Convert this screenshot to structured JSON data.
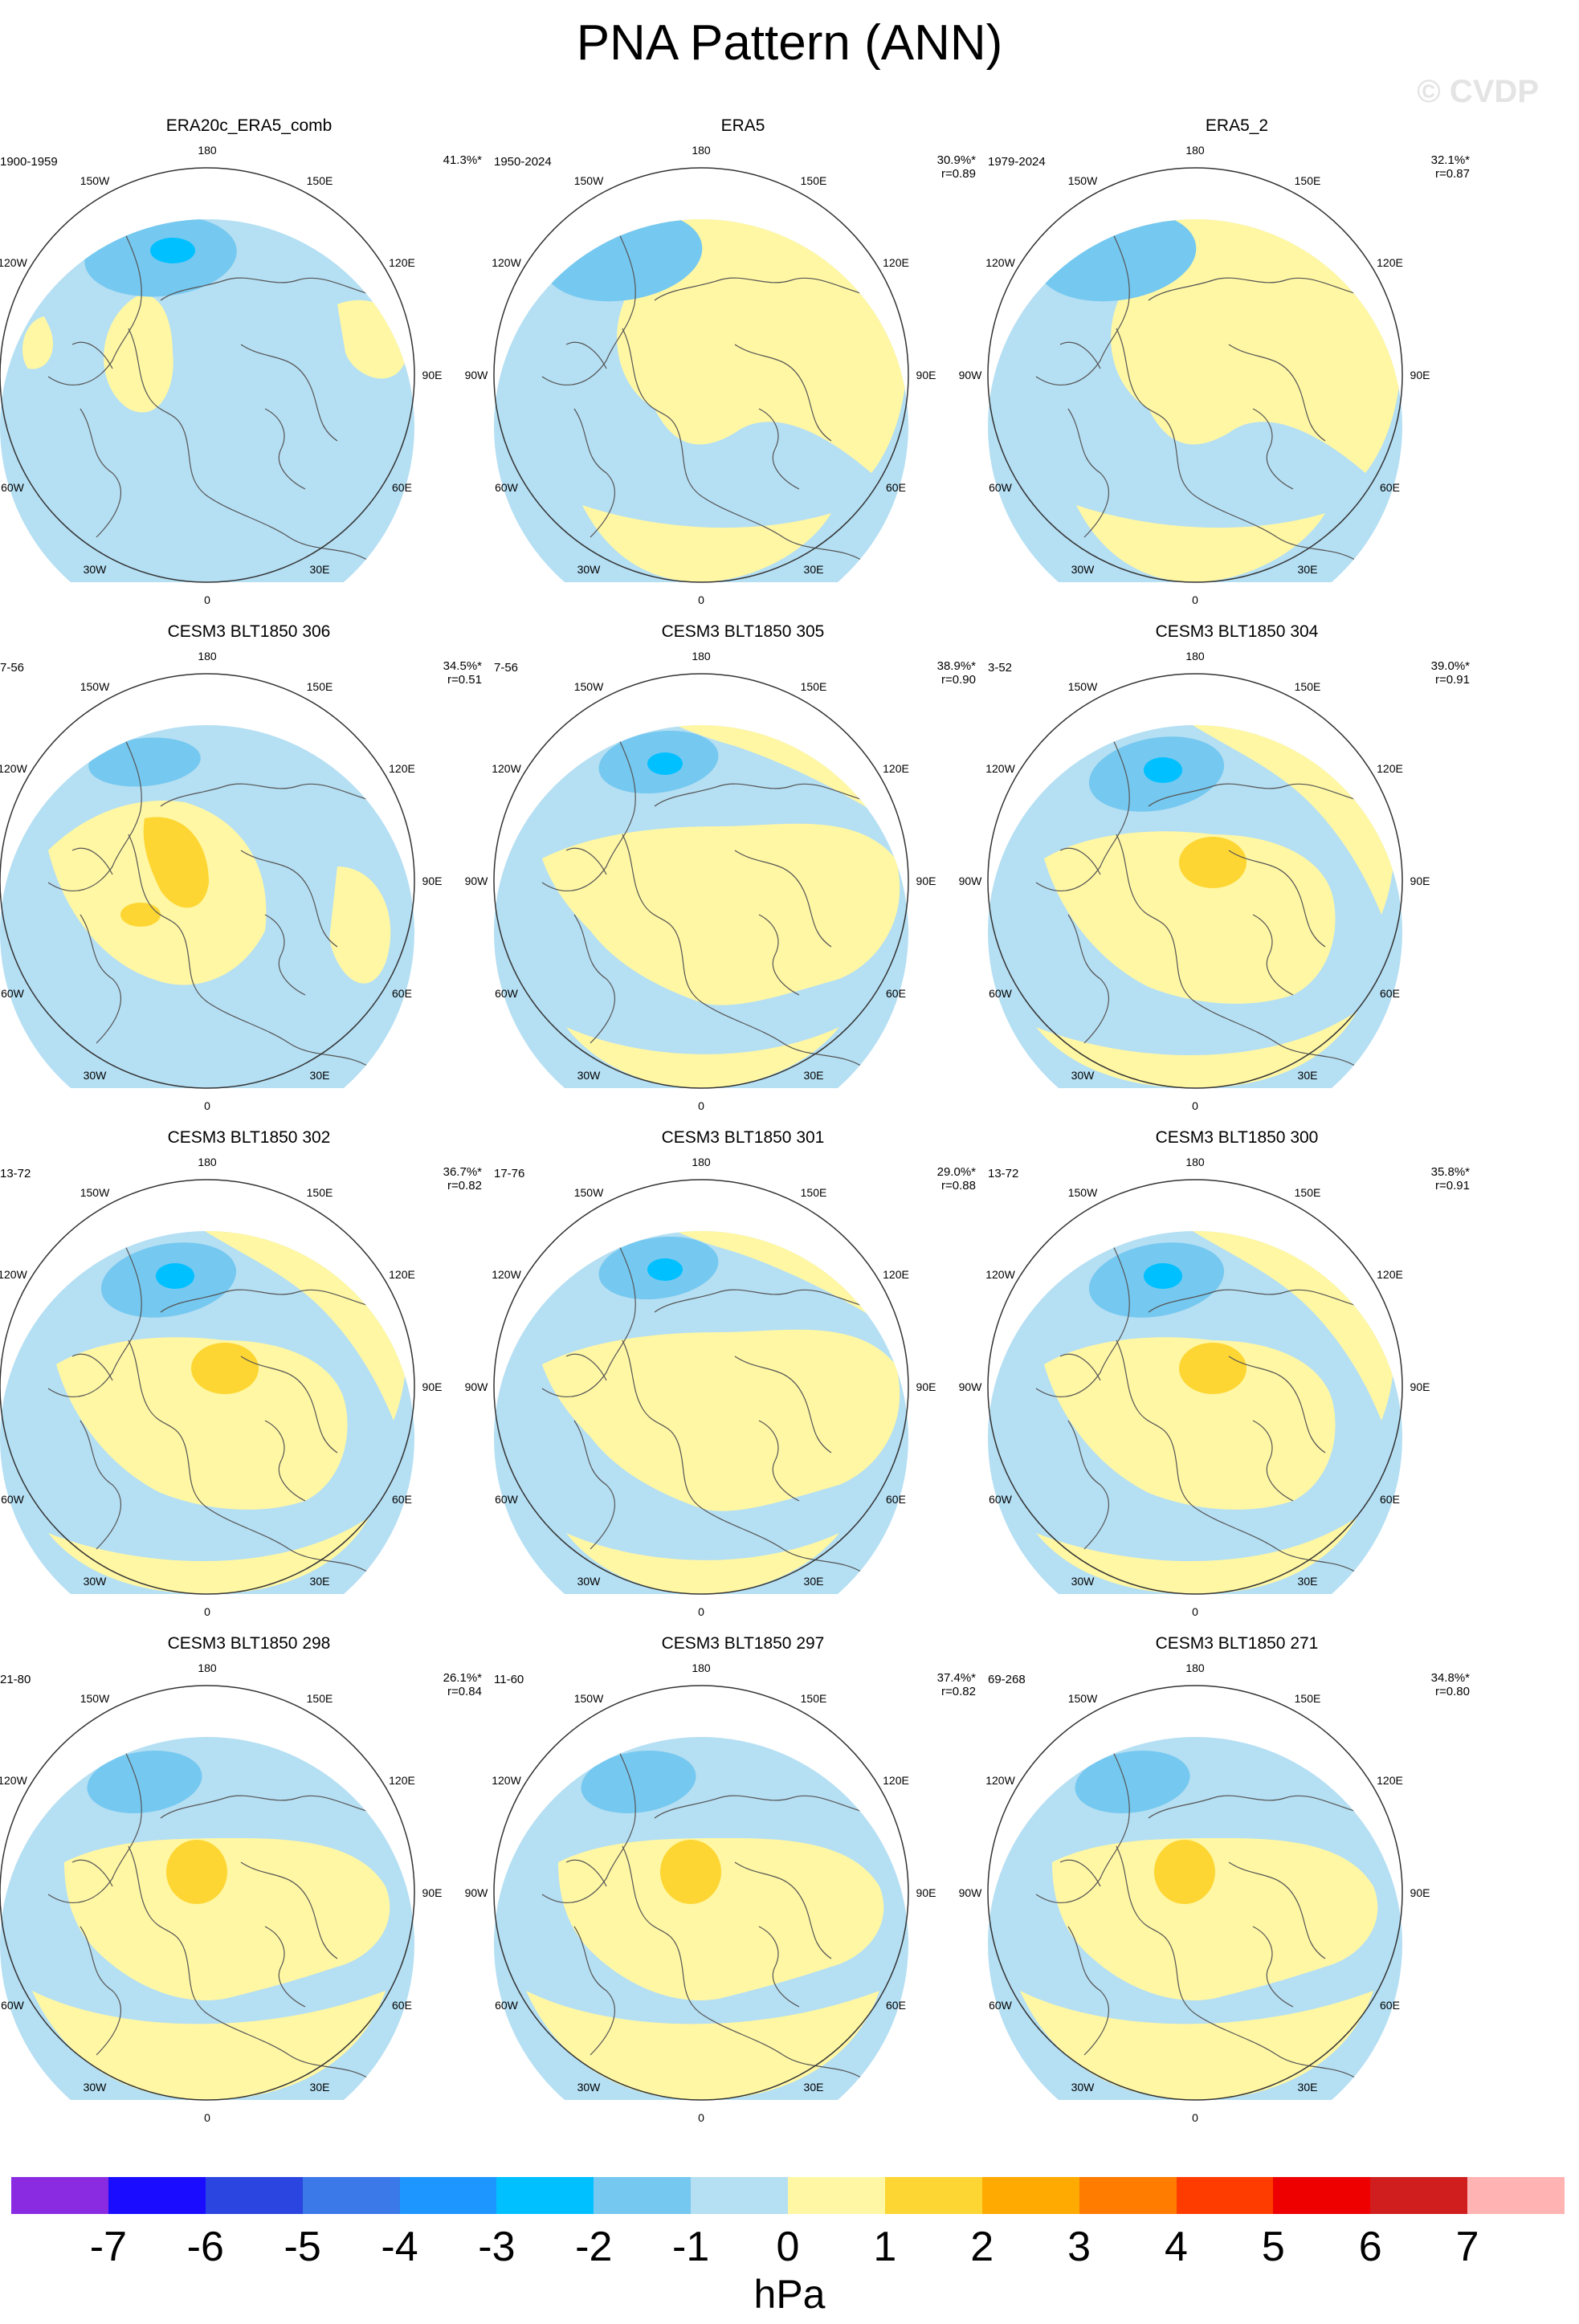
{
  "title": "PNA Pattern (ANN)",
  "watermark": "© CVDP",
  "lon_labels": {
    "l180": "180",
    "l150w": "150W",
    "l150e": "150E",
    "l120w": "120W",
    "l120e": "120E",
    "l90w": "90W",
    "l90e": "90E",
    "l60w": "60W",
    "l60e": "60E",
    "l30w": "30W",
    "l30e": "30E",
    "l0": "0"
  },
  "panels": [
    {
      "title": "ERA20c_ERA5_comb",
      "period": "1900-1959",
      "pct": "41.3%*",
      "r": "",
      "style": 0
    },
    {
      "title": "ERA5",
      "period": "1950-2024",
      "pct": "30.9%*",
      "r": "r=0.89",
      "style": 1
    },
    {
      "title": "ERA5_2",
      "period": "1979-2024",
      "pct": "32.1%*",
      "r": "r=0.87",
      "style": 1
    },
    {
      "title": "CESM3 BLT1850 306",
      "period": "7-56",
      "pct": "34.5%*",
      "r": "r=0.51",
      "style": 2
    },
    {
      "title": "CESM3 BLT1850 305",
      "period": "7-56",
      "pct": "38.9%*",
      "r": "r=0.90",
      "style": 3
    },
    {
      "title": "CESM3 BLT1850 304",
      "period": "3-52",
      "pct": "39.0%*",
      "r": "r=0.91",
      "style": 4
    },
    {
      "title": "CESM3 BLT1850 302",
      "period": "13-72",
      "pct": "36.7%*",
      "r": "r=0.82",
      "style": 4
    },
    {
      "title": "CESM3 BLT1850 301",
      "period": "17-76",
      "pct": "29.0%*",
      "r": "r=0.88",
      "style": 3
    },
    {
      "title": "CESM3 BLT1850 300",
      "period": "13-72",
      "pct": "35.8%*",
      "r": "r=0.91",
      "style": 4
    },
    {
      "title": "CESM3 BLT1850 298",
      "period": "21-80",
      "pct": "26.1%*",
      "r": "r=0.84",
      "style": 5
    },
    {
      "title": "CESM3 BLT1850 297",
      "period": "11-60",
      "pct": "37.4%*",
      "r": "r=0.82",
      "style": 5
    },
    {
      "title": "CESM3 BLT1850 271",
      "period": "69-268",
      "pct": "34.8%*",
      "r": "r=0.80",
      "style": 5
    }
  ],
  "colorbar": {
    "colors": [
      "#8a2be2",
      "#1a0dff",
      "#2a45e0",
      "#3b78e8",
      "#1e96ff",
      "#00c0ff",
      "#75c8f0",
      "#b5dff3",
      "#fff7a4",
      "#fed633",
      "#ffaa00",
      "#ff7c00",
      "#ff3c00",
      "#ee0000",
      "#d01e1e",
      "#ffb3b3"
    ],
    "ticks": [
      "-7",
      "-6",
      "-5",
      "-4",
      "-3",
      "-2",
      "-1",
      "0",
      "1",
      "2",
      "3",
      "4",
      "5",
      "6",
      "7"
    ],
    "units": "hPa"
  }
}
